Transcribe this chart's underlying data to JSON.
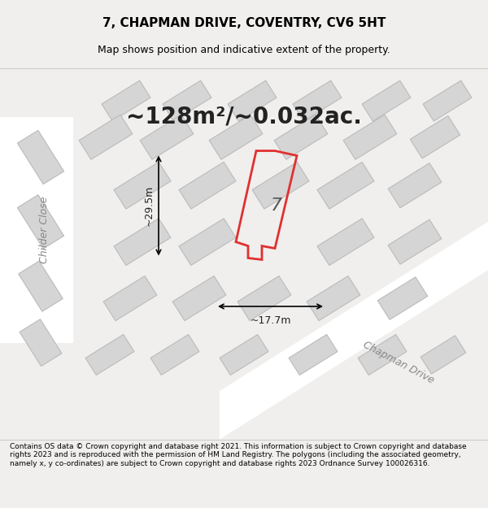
{
  "title": "7, CHAPMAN DRIVE, COVENTRY, CV6 5HT",
  "subtitle": "Map shows position and indicative extent of the property.",
  "area_text": "~128m²/~0.032ac.",
  "width_label": "~17.7m",
  "height_label": "~29.5m",
  "property_number": "7",
  "footer": "Contains OS data © Crown copyright and database right 2021. This information is subject to Crown copyright and database rights 2023 and is reproduced with the permission of HM Land Registry. The polygons (including the associated geometry, namely x, y co-ordinates) are subject to Crown copyright and database rights 2023 Ordnance Survey 100026316.",
  "bg_color": "#f0efed",
  "map_bg": "#f0efed",
  "building_fill": "#d8d8d8",
  "building_edge": "#c0c0c0",
  "highlight_fill": "none",
  "highlight_edge": "#e03030",
  "road_color": "#ffffff",
  "street_name_chapman": "Chapman Drive",
  "street_name_childer": "Childer Close"
}
